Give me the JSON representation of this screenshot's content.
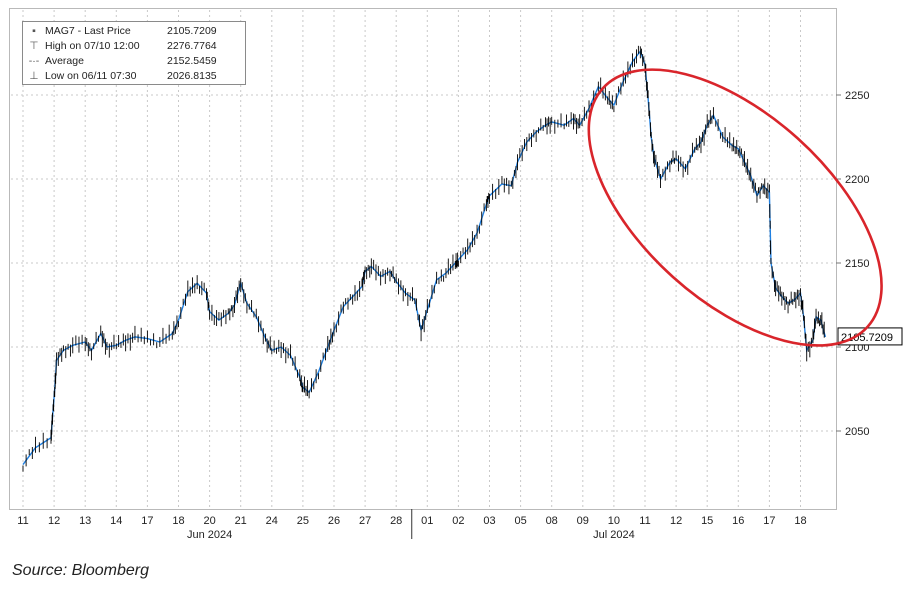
{
  "chart_data": {
    "type": "line",
    "legend": {
      "items": [
        {
          "symbol": "square",
          "label": "MAG7 - Last Price",
          "value": "2105.7209"
        },
        {
          "symbol": "high",
          "label": "High on 07/10 12:00",
          "value": "2276.7764"
        },
        {
          "symbol": "average",
          "label": "Average",
          "value": "2152.5459"
        },
        {
          "symbol": "low",
          "label": "Low on 06/11 07:30",
          "value": "2026.8135"
        }
      ],
      "placement": "top-left"
    },
    "y_axis": {
      "position": "right",
      "ticks": [
        2050,
        2100,
        2150,
        2200,
        2250
      ],
      "range": [
        2010,
        2300
      ],
      "last_price_label": "2105.7209"
    },
    "x_axis": {
      "ticks": [
        "11",
        "12",
        "13",
        "14",
        "17",
        "18",
        "20",
        "21",
        "24",
        "25",
        "26",
        "27",
        "28",
        "01",
        "02",
        "03",
        "05",
        "08",
        "09",
        "10",
        "11",
        "12",
        "15",
        "16",
        "17",
        "18"
      ],
      "months": [
        {
          "label": "Jun 2024",
          "start_index": 0,
          "end_index": 12
        },
        {
          "label": "Jul 2024",
          "start_index": 13,
          "end_index": 25
        }
      ]
    },
    "grid": true,
    "series": [
      {
        "values": [
          [
            0.0,
            2030
          ],
          [
            0.4,
            2040
          ],
          [
            0.9,
            2046
          ],
          [
            0.95,
            2058
          ],
          [
            1.02,
            2075
          ],
          [
            1.08,
            2092
          ],
          [
            1.3,
            2098
          ],
          [
            1.6,
            2101
          ],
          [
            2.0,
            2103
          ],
          [
            2.2,
            2098
          ],
          [
            2.5,
            2108
          ],
          [
            2.7,
            2100
          ],
          [
            3.0,
            2101
          ],
          [
            3.3,
            2104
          ],
          [
            3.6,
            2106
          ],
          [
            4.0,
            2105
          ],
          [
            4.4,
            2103
          ],
          [
            4.8,
            2108
          ],
          [
            5.0,
            2116
          ],
          [
            5.3,
            2133
          ],
          [
            5.6,
            2138
          ],
          [
            5.9,
            2132
          ],
          [
            6.0,
            2121
          ],
          [
            6.3,
            2116
          ],
          [
            6.6,
            2120
          ],
          [
            6.8,
            2125
          ],
          [
            7.0,
            2138
          ],
          [
            7.2,
            2126
          ],
          [
            7.5,
            2118
          ],
          [
            7.8,
            2105
          ],
          [
            8.0,
            2098
          ],
          [
            8.3,
            2100
          ],
          [
            8.6,
            2095
          ],
          [
            8.9,
            2082
          ],
          [
            9.0,
            2076
          ],
          [
            9.2,
            2073
          ],
          [
            9.5,
            2085
          ],
          [
            9.8,
            2100
          ],
          [
            10.0,
            2110
          ],
          [
            10.3,
            2124
          ],
          [
            10.6,
            2130
          ],
          [
            10.9,
            2136
          ],
          [
            11.0,
            2145
          ],
          [
            11.2,
            2148
          ],
          [
            11.5,
            2142
          ],
          [
            11.8,
            2145
          ],
          [
            12.0,
            2139
          ],
          [
            12.3,
            2132
          ],
          [
            12.6,
            2128
          ],
          [
            12.8,
            2110
          ],
          [
            13.0,
            2122
          ],
          [
            13.3,
            2140
          ],
          [
            13.6,
            2144
          ],
          [
            13.9,
            2150
          ],
          [
            14.0,
            2152
          ],
          [
            14.3,
            2158
          ],
          [
            14.6,
            2168
          ],
          [
            14.9,
            2185
          ],
          [
            15.0,
            2190
          ],
          [
            15.4,
            2197
          ],
          [
            15.7,
            2196
          ],
          [
            15.9,
            2210
          ],
          [
            16.2,
            2222
          ],
          [
            16.5,
            2228
          ],
          [
            16.8,
            2232
          ],
          [
            17.0,
            2234
          ],
          [
            17.4,
            2232
          ],
          [
            17.7,
            2236
          ],
          [
            17.9,
            2232
          ],
          [
            18.2,
            2242
          ],
          [
            18.5,
            2255
          ],
          [
            18.8,
            2248
          ],
          [
            19.0,
            2244
          ],
          [
            19.3,
            2258
          ],
          [
            19.6,
            2270
          ],
          [
            19.85,
            2276
          ],
          [
            20.0,
            2268
          ],
          [
            20.1,
            2248
          ],
          [
            20.2,
            2225
          ],
          [
            20.3,
            2212
          ],
          [
            20.5,
            2200
          ],
          [
            20.8,
            2210
          ],
          [
            21.0,
            2212
          ],
          [
            21.3,
            2206
          ],
          [
            21.6,
            2218
          ],
          [
            21.8,
            2222
          ],
          [
            22.0,
            2232
          ],
          [
            22.2,
            2238
          ],
          [
            22.5,
            2225
          ],
          [
            22.8,
            2220
          ],
          [
            23.0,
            2218
          ],
          [
            23.2,
            2210
          ],
          [
            23.4,
            2202
          ],
          [
            23.6,
            2190
          ],
          [
            23.8,
            2196
          ],
          [
            24.0,
            2192
          ],
          [
            24.05,
            2150
          ],
          [
            24.2,
            2135
          ],
          [
            24.4,
            2130
          ],
          [
            24.6,
            2126
          ],
          [
            24.8,
            2128
          ],
          [
            25.0,
            2132
          ],
          [
            25.1,
            2118
          ],
          [
            25.2,
            2098
          ],
          [
            25.4,
            2104
          ],
          [
            25.5,
            2118
          ],
          [
            25.65,
            2116
          ],
          [
            25.8,
            2106
          ]
        ]
      }
    ],
    "annotations": [
      {
        "type": "ellipse",
        "color": "#d9252b",
        "center": [
          22.9,
          2183
        ],
        "rx_index": 3.8,
        "ry_value": 68
      }
    ]
  },
  "source_text": "Source: Bloomberg",
  "colors": {
    "line": "#1f7fe0",
    "candle_wick": "#000000",
    "grid": "#c9c9c9",
    "ellipse": "#d9252b"
  }
}
